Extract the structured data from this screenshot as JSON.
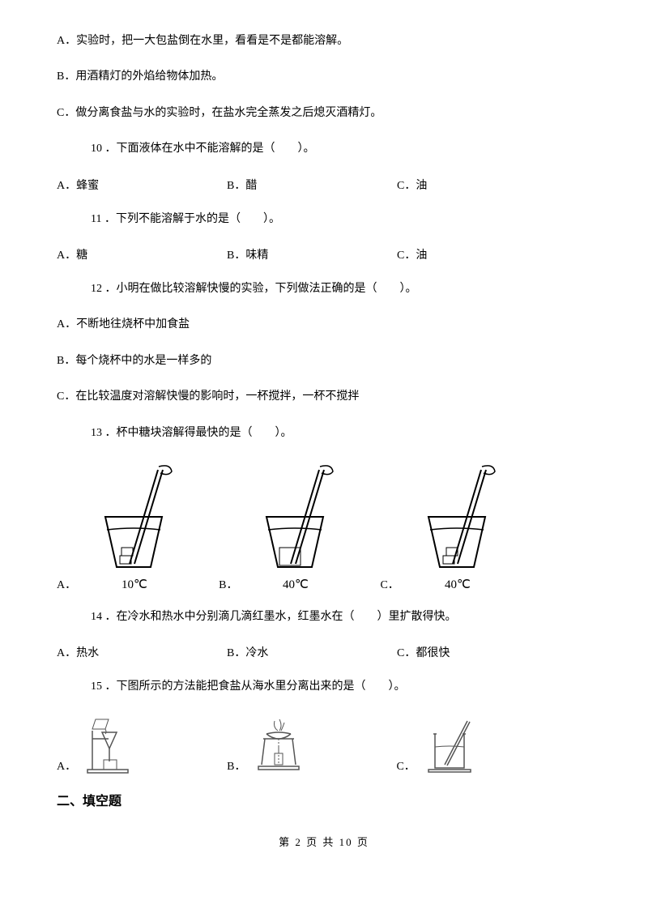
{
  "lineA": "A．实验时，把一大包盐倒在水里，看看是不是都能溶解。",
  "lineB": "B．用酒精灯的外焰给物体加热。",
  "lineC": "C．做分离食盐与水的实验时，在盐水完全蒸发之后熄灭酒精灯。",
  "q10": {
    "stem": "10 ．下面液体在水中不能溶解的是（　　）。",
    "A": "A．蜂蜜",
    "B": "B．醋",
    "C": "C．油"
  },
  "q11": {
    "stem": "11 ．下列不能溶解于水的是（　　）。",
    "A": "A．糖",
    "B": "B．味精",
    "C": "C．油"
  },
  "q12": {
    "stem": "12 ．小明在做比较溶解快慢的实验，下列做法正确的是（　　）。",
    "A": "A．不断地往烧杯中加食盐",
    "B": "B．每个烧杯中的水是一样多的",
    "C": "C．在比较温度对溶解快慢的影响时，一杯搅拌，一杯不搅拌"
  },
  "q13": {
    "stem": "13 ．杯中糖块溶解得最快的是（　　）。",
    "A": "A．",
    "B": "B．",
    "C": "C．",
    "tempA": "10℃",
    "tempB": "40℃",
    "tempC": "40℃"
  },
  "q14": {
    "stem": "14 ．在冷水和热水中分别滴几滴红墨水，红墨水在（　　）里扩散得快。",
    "A": "A．热水",
    "B": "B．冷水",
    "C": "C．都很快"
  },
  "q15": {
    "stem": "15 ．下图所示的方法能把食盐从海水里分离出来的是（　　）。",
    "A": "A．",
    "B": "B．",
    "C": "C．"
  },
  "section2": "二、填空题",
  "footer": "第 2 页 共 10 页",
  "svg": {
    "cup": {
      "w": 120,
      "h": 140,
      "stroke": "#000000",
      "fill": "#ffffff"
    },
    "small": {
      "w": 80,
      "h": 70,
      "stroke": "#555555"
    }
  }
}
